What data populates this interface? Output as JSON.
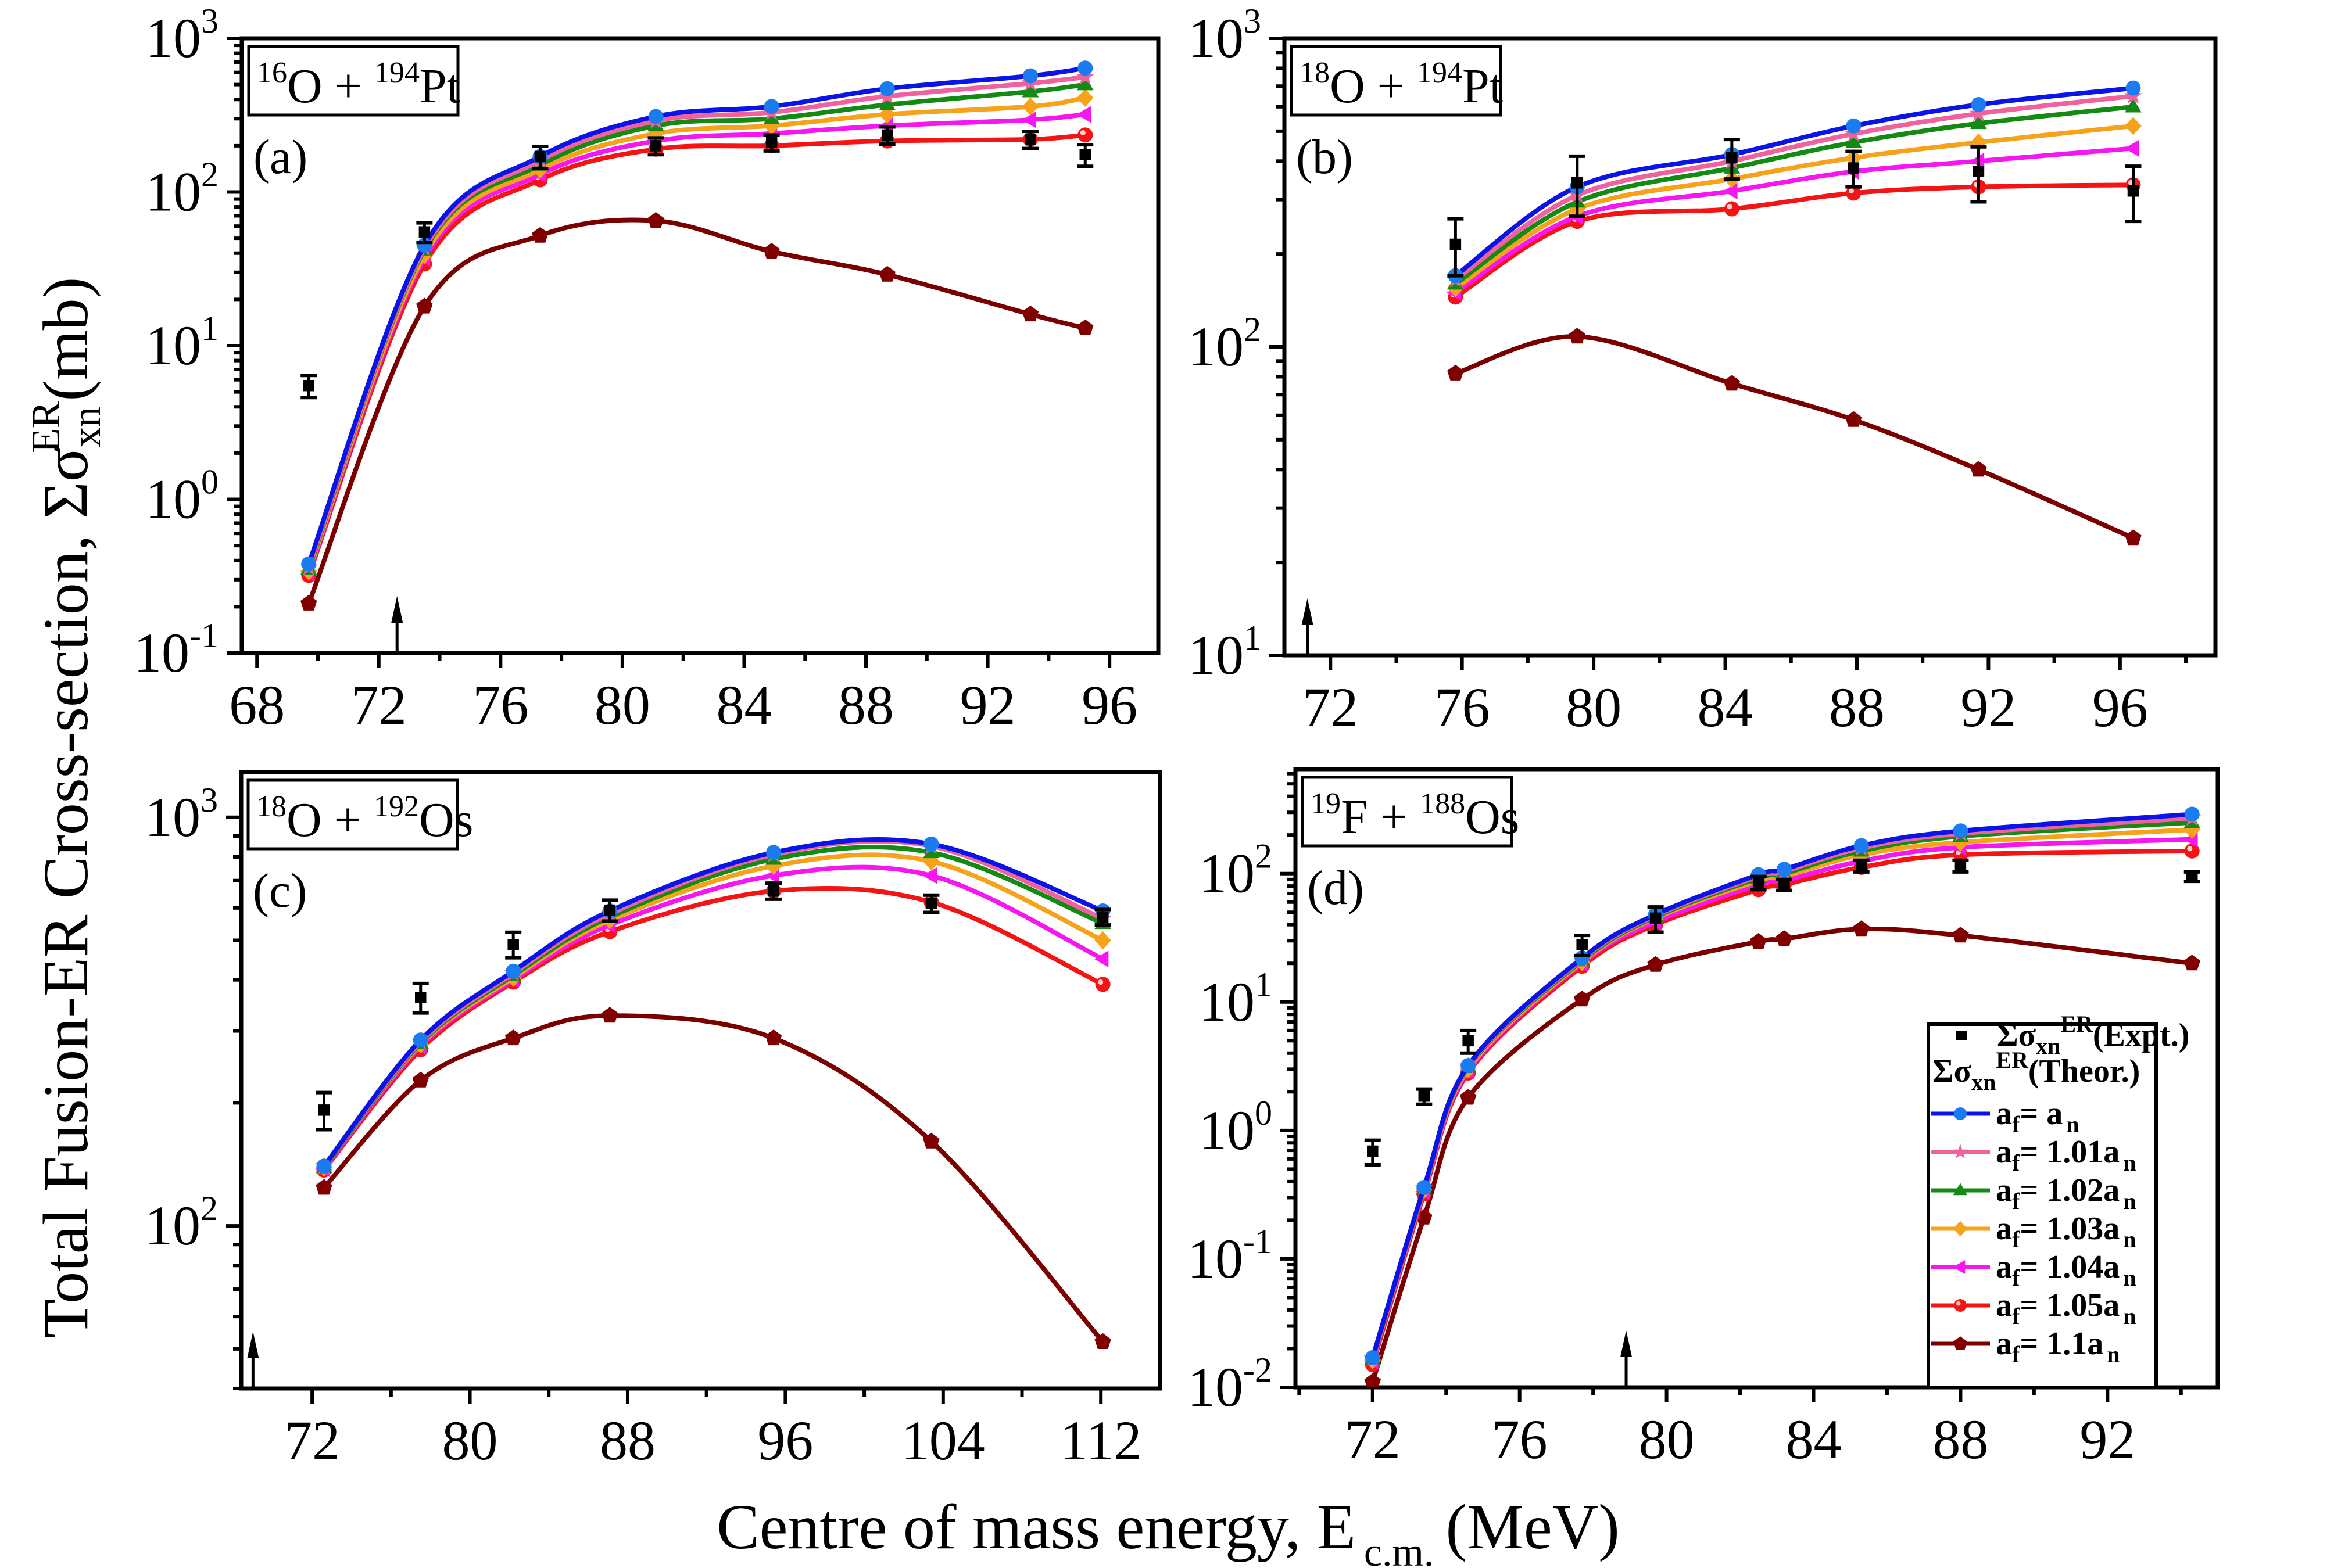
{
  "figure": {
    "ylabel": "Total Fusion-ER Cross-section, Σσ",
    "ylabel_sub": "xn",
    "ylabel_sup": "ER",
    "ylabel_unit": "(mb)",
    "xlabel": "Centre of mass energy, E",
    "xlabel_sub": "c.m.",
    "xlabel_unit": "(MeV)"
  },
  "legend": {
    "expt": {
      "prefix": "Σσ",
      "sub": "xn",
      "sup": "ER",
      "suffix": "(Expt.)"
    },
    "theor_header": {
      "prefix": "Σσ",
      "sub": "xn",
      "sup": "ER",
      "suffix": "(Theor.)"
    },
    "entries": [
      {
        "label": "a",
        "sub1": "f",
        "mid": "= a",
        "sub2": "n",
        "series": 0
      },
      {
        "label": "a",
        "sub1": "f",
        "mid": "= 1.01a",
        "sub2": "n",
        "series": 1
      },
      {
        "label": "a",
        "sub1": "f",
        "mid": "= 1.02a",
        "sub2": "n",
        "series": 2
      },
      {
        "label": "a",
        "sub1": "f",
        "mid": "= 1.03a",
        "sub2": "n",
        "series": 3
      },
      {
        "label": "a",
        "sub1": "f",
        "mid": "= 1.04a",
        "sub2": "n",
        "series": 4
      },
      {
        "label": "a",
        "sub1": "f",
        "mid": "= 1.05a",
        "sub2": "n",
        "series": 5
      },
      {
        "label": "a",
        "sub1": "f",
        "mid": "= 1.1a",
        "sub2": "n",
        "series": 6
      }
    ],
    "placement": "panel-d lower-right"
  },
  "series_styles": [
    {
      "name": "af = an",
      "line": "#0a14e6",
      "marker": "circle",
      "fill": "#1a7cf0"
    },
    {
      "name": "af = 1.01an",
      "line": "#f0619e",
      "marker": "star",
      "fill": "#f0619e"
    },
    {
      "name": "af = 1.02an",
      "line": "#138a13",
      "marker": "triangle-up",
      "fill": "#138a13"
    },
    {
      "name": "af = 1.03an",
      "line": "#f7a21b",
      "marker": "diamond",
      "fill": "#f7a21b"
    },
    {
      "name": "af = 1.04an",
      "line": "#f516f0",
      "marker": "triangle-left",
      "fill": "#f516f0"
    },
    {
      "name": "af = 1.05an",
      "line": "#f51313",
      "marker": "sphere",
      "fill": "#f51313"
    },
    {
      "name": "af = 1.1an",
      "line": "#7a0000",
      "marker": "pentagon",
      "fill": "#800000"
    }
  ],
  "expt_style": {
    "color": "#000000",
    "marker": "square"
  },
  "chart_data": [
    {
      "type": "scatter",
      "panel": "(a)",
      "system": {
        "a1": "16",
        "p": "O + ",
        "a2": "194",
        "t": "Pt"
      },
      "xlabel": "Centre of mass energy, E c.m. (MeV)",
      "ylabel": "Total Fusion-ER Cross-section, Σσxn ER (mb)",
      "yscale": "log",
      "xlim": [
        67.5,
        97.6
      ],
      "ylim": [
        0.1,
        1000
      ],
      "xticks": [
        68,
        72,
        76,
        80,
        84,
        88,
        92,
        96
      ],
      "ydecades": [
        -1,
        0,
        1,
        2,
        3
      ],
      "barrier_arrow_x": 72.6,
      "x": [
        69.7,
        73.5,
        77.3,
        81.1,
        84.9,
        88.7,
        93.4,
        95.2
      ],
      "expt": {
        "y": [
          5.5,
          55,
          170,
          200,
          210,
          235,
          220,
          175
        ],
        "err": [
          0.9,
          8,
          28,
          25,
          25,
          30,
          28,
          28
        ]
      },
      "series": [
        {
          "name": "af = an",
          "values": [
            0.38,
            45,
            170,
            310,
            360,
            470,
            570,
            640
          ]
        },
        {
          "name": "af = 1.01an",
          "values": [
            0.36,
            43,
            160,
            290,
            330,
            420,
            510,
            560
          ]
        },
        {
          "name": "af = 1.02an",
          "values": [
            0.35,
            42,
            150,
            270,
            300,
            370,
            450,
            500
          ]
        },
        {
          "name": "af = 1.03an",
          "values": [
            0.34,
            39,
            140,
            240,
            270,
            320,
            360,
            410
          ]
        },
        {
          "name": "af = 1.04an",
          "values": [
            0.33,
            37,
            130,
            215,
            240,
            270,
            295,
            320
          ]
        },
        {
          "name": "af = 1.05an",
          "values": [
            0.32,
            34,
            120,
            190,
            200,
            215,
            220,
            235
          ]
        },
        {
          "name": "af = 1.1an",
          "values": [
            0.21,
            18,
            52,
            65,
            41,
            29,
            16,
            13
          ]
        }
      ]
    },
    {
      "type": "scatter",
      "panel": "(b)",
      "system": {
        "a1": "18",
        "p": "O + ",
        "a2": "194",
        "t": "Pt"
      },
      "yscale": "log",
      "xlim": [
        70.6,
        98.9
      ],
      "ylim": [
        10,
        1000
      ],
      "xticks": [
        72,
        76,
        80,
        84,
        88,
        92,
        96
      ],
      "ydecades": [
        1,
        2,
        3
      ],
      "barrier_arrow_x": 71.3,
      "x": [
        75.8,
        79.5,
        84.2,
        87.9,
        91.7,
        96.4
      ],
      "expt": {
        "y": [
          215,
          340,
          410,
          380,
          370,
          320
        ],
        "err": [
          45,
          75,
          60,
          50,
          75,
          65
        ]
      },
      "series": [
        {
          "name": "af = an",
          "values": [
            170,
            330,
            420,
            520,
            610,
            690
          ]
        },
        {
          "name": "af = 1.01an",
          "values": [
            165,
            310,
            400,
            490,
            570,
            650
          ]
        },
        {
          "name": "af = 1.02an",
          "values": [
            160,
            295,
            380,
            460,
            530,
            600
          ]
        },
        {
          "name": "af = 1.03an",
          "values": [
            155,
            280,
            350,
            410,
            460,
            520
          ]
        },
        {
          "name": "af = 1.04an",
          "values": [
            150,
            265,
            320,
            370,
            400,
            440
          ]
        },
        {
          "name": "af = 1.05an",
          "values": [
            145,
            255,
            280,
            315,
            330,
            335
          ]
        },
        {
          "name": "af = 1.1an",
          "values": [
            82,
            108,
            76,
            58,
            40,
            24
          ]
        }
      ]
    },
    {
      "type": "scatter",
      "panel": "(c)",
      "system": {
        "a1": "18",
        "p": "O + ",
        "a2": "192",
        "t": "Os"
      },
      "yscale": "log",
      "xlim": [
        68.4,
        115.0
      ],
      "ylim": [
        40,
        1290
      ],
      "xticks": [
        72,
        80,
        88,
        96,
        104,
        112
      ],
      "ydecades": [
        2,
        3
      ],
      "barrier_arrow_x": 69.0,
      "x": [
        72.6,
        77.5,
        82.2,
        87.1,
        95.4,
        103.4,
        112.1
      ],
      "expt": {
        "y": [
          192,
          362,
          488,
          592,
          660,
          615,
          570
        ],
        "err": [
          20,
          30,
          35,
          35,
          30,
          30,
          25
        ]
      },
      "series": [
        {
          "name": "af = an",
          "values": [
            140,
            285,
            420,
            590,
            820,
            860,
            590
          ]
        },
        {
          "name": "af = 1.01an",
          "values": [
            140,
            282,
            415,
            580,
            810,
            850,
            565
          ]
        },
        {
          "name": "af = 1.02an",
          "values": [
            139,
            280,
            410,
            570,
            790,
            820,
            550
          ]
        },
        {
          "name": "af = 1.03an",
          "values": [
            139,
            278,
            405,
            560,
            760,
            780,
            500
          ]
        },
        {
          "name": "af = 1.04an",
          "values": [
            138,
            275,
            400,
            545,
            720,
            720,
            450
          ]
        },
        {
          "name": "af = 1.05an",
          "values": [
            137,
            270,
            395,
            525,
            660,
            620,
            390
          ]
        },
        {
          "name": "af = 1.1an",
          "values": [
            124,
            227,
            288,
            327,
            288,
            161,
            52
          ]
        }
      ]
    },
    {
      "type": "scatter",
      "panel": "(d)",
      "system": {
        "a1": "19",
        "p": "F + ",
        "a2": "188",
        "t": "Os"
      },
      "yscale": "log",
      "xlim": [
        69.9,
        95.0
      ],
      "ylim": [
        0.01,
        650
      ],
      "xticks": [
        72,
        76,
        80,
        84,
        88,
        92
      ],
      "ydecades": [
        -2,
        -1,
        0,
        1,
        2
      ],
      "barrier_arrow_x": 78.9,
      "x": [
        72.0,
        73.4,
        74.6,
        77.7,
        79.7,
        82.5,
        83.2,
        85.3,
        88.0,
        94.3
      ],
      "expt": {
        "y": [
          0.69,
          1.85,
          5.0,
          28,
          45,
          85,
          82,
          115,
          115,
          95
        ],
        "err": [
          0.15,
          0.25,
          1.0,
          5,
          10,
          10,
          8,
          12,
          12,
          8
        ]
      },
      "series": [
        {
          "name": "af = an",
          "values": [
            0.017,
            0.36,
            3.2,
            22,
            48,
            98,
            108,
            165,
            215,
            290
          ]
        },
        {
          "name": "af = 1.01an",
          "values": [
            0.0168,
            0.355,
            3.15,
            21.5,
            47,
            95,
            104,
            158,
            205,
            270
          ]
        },
        {
          "name": "af = 1.02an",
          "values": [
            0.0166,
            0.35,
            3.1,
            21,
            46,
            92,
            100,
            150,
            195,
            250
          ]
        },
        {
          "name": "af = 1.03an",
          "values": [
            0.0163,
            0.345,
            3.0,
            20.5,
            45,
            88,
            95,
            140,
            175,
            220
          ]
        },
        {
          "name": "af = 1.04an",
          "values": [
            0.016,
            0.335,
            2.9,
            20,
            42,
            82,
            88,
            125,
            160,
            185
          ]
        },
        {
          "name": "af = 1.05an",
          "values": [
            0.015,
            0.32,
            2.8,
            19,
            40,
            75,
            82,
            112,
            140,
            150
          ]
        },
        {
          "name": "af = 1.1an",
          "values": [
            0.011,
            0.21,
            1.8,
            10.5,
            19.5,
            29.5,
            31,
            37,
            33,
            20
          ]
        }
      ]
    }
  ]
}
